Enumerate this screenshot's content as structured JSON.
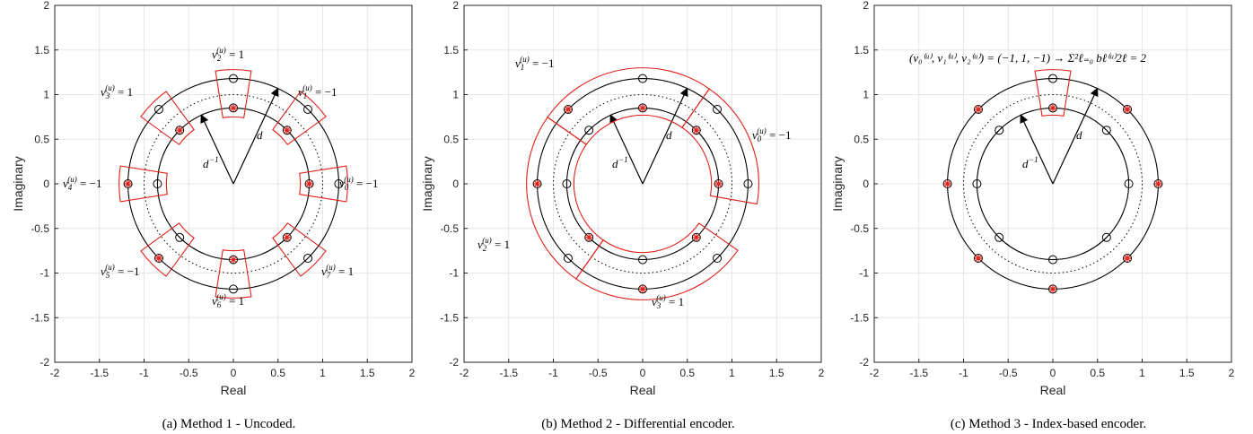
{
  "chart_data": [
    {
      "type": "scatter",
      "xlabel": "Real",
      "ylabel": "Imaginary",
      "xlim": [
        -2,
        2
      ],
      "ylim": [
        -2,
        2
      ],
      "xticks": [
        "-2",
        "-1.5",
        "-1",
        "-0.5",
        "0",
        "0.5",
        "1",
        "1.5",
        "2"
      ],
      "yticks": [
        "-2",
        "-1.5",
        "-1",
        "-0.5",
        "0",
        "0.5",
        "1",
        "1.5",
        "2"
      ],
      "grid": true,
      "caption": "(a) Method 1 - Uncoded.",
      "circles": {
        "outer_radius": 1.18,
        "inner_radius": 0.85,
        "dotted_radius": 1.0
      },
      "arrow_labels": {
        "outer": "d",
        "inner": "d^-1"
      },
      "outer_points_angles_deg": [
        0,
        45,
        90,
        135,
        180,
        225,
        270,
        315
      ],
      "inner_points_angles_deg": [
        0,
        45,
        90,
        135,
        180,
        225,
        270,
        315
      ],
      "selected": [
        {
          "ring": "inner",
          "angle": 0
        },
        {
          "ring": "inner",
          "angle": 45
        },
        {
          "ring": "inner",
          "angle": 90
        },
        {
          "ring": "inner",
          "angle": 135
        },
        {
          "ring": "outer",
          "angle": 180
        },
        {
          "ring": "outer",
          "angle": 225
        },
        {
          "ring": "inner",
          "angle": 270
        },
        {
          "ring": "inner",
          "angle": 315
        }
      ],
      "annotations": [
        {
          "text": "v_0^(u) = -1"
        },
        {
          "text": "v_1^(u) = -1"
        },
        {
          "text": "v_2^(u) = 1"
        },
        {
          "text": "v_3^(u) = 1"
        },
        {
          "text": "v_4^(u) = -1"
        },
        {
          "text": "v_5^(u) = -1"
        },
        {
          "text": "v_6^(u) = 1"
        },
        {
          "text": "v_7^(u) = 1"
        }
      ]
    },
    {
      "type": "scatter",
      "xlabel": "Real",
      "ylabel": "Imaginary",
      "xlim": [
        -2,
        2
      ],
      "ylim": [
        -2,
        2
      ],
      "xticks": [
        "-2",
        "-1.5",
        "-1",
        "-0.5",
        "0",
        "0.5",
        "1",
        "1.5",
        "2"
      ],
      "yticks": [
        "-2",
        "-1.5",
        "-1",
        "-0.5",
        "0",
        "0.5",
        "1",
        "1.5",
        "2"
      ],
      "grid": true,
      "caption": "(b) Method 2 - Differential encoder.",
      "circles": {
        "outer_radius": 1.18,
        "inner_radius": 0.85,
        "dotted_radius": 1.0
      },
      "arrow_labels": {
        "outer": "d",
        "inner": "d^-1"
      },
      "outer_points_angles_deg": [
        0,
        45,
        90,
        135,
        180,
        225,
        270,
        315
      ],
      "inner_points_angles_deg": [
        0,
        45,
        90,
        135,
        180,
        225,
        270,
        315
      ],
      "selected": [
        {
          "ring": "inner",
          "angle": 0
        },
        {
          "ring": "inner",
          "angle": 45
        },
        {
          "ring": "inner",
          "angle": 90
        },
        {
          "ring": "outer",
          "angle": 135
        },
        {
          "ring": "outer",
          "angle": 180
        },
        {
          "ring": "inner",
          "angle": 225
        },
        {
          "ring": "outer",
          "angle": 270
        },
        {
          "ring": "inner",
          "angle": 315
        }
      ],
      "annotations": [
        {
          "text": "v_0^(u) = -1"
        },
        {
          "text": "v_1^(u) = -1"
        },
        {
          "text": "v_2^(u) = 1"
        },
        {
          "text": "v_3^(u) = 1"
        }
      ]
    },
    {
      "type": "scatter",
      "xlabel": "Real",
      "ylabel": "Imaginary",
      "xlim": [
        -2,
        2
      ],
      "ylim": [
        -2,
        2
      ],
      "xticks": [
        "-2",
        "-1.5",
        "-1",
        "-0.5",
        "0",
        "0.5",
        "1",
        "1.5",
        "2"
      ],
      "yticks": [
        "-2",
        "-1.5",
        "-1",
        "-0.5",
        "0",
        "0.5",
        "1",
        "1.5",
        "2"
      ],
      "grid": true,
      "caption": "(c) Method 3 - Index-based encoder.",
      "circles": {
        "outer_radius": 1.18,
        "inner_radius": 0.85,
        "dotted_radius": 1.0
      },
      "arrow_labels": {
        "outer": "d",
        "inner": "d^-1"
      },
      "outer_points_angles_deg": [
        0,
        45,
        90,
        135,
        180,
        225,
        270,
        315
      ],
      "inner_points_angles_deg": [
        0,
        45,
        90,
        135,
        180,
        225,
        270,
        315
      ],
      "selected": [
        {
          "ring": "outer",
          "angle": 0
        },
        {
          "ring": "outer",
          "angle": 45
        },
        {
          "ring": "inner",
          "angle": 90
        },
        {
          "ring": "outer",
          "angle": 135
        },
        {
          "ring": "outer",
          "angle": 180
        },
        {
          "ring": "outer",
          "angle": 225
        },
        {
          "ring": "outer",
          "angle": 270
        },
        {
          "ring": "outer",
          "angle": 315
        }
      ],
      "annotations": [
        {
          "text": "(v_0^(u), v_1^(u), v_2^(u)) = (-1, 1, -1) → Σ_{ℓ=0}^2 b_ℓ^(u) 2^ℓ = 2"
        }
      ]
    }
  ],
  "colors": {
    "ring": "#000000",
    "selected": "#e0201a",
    "grid": "#e6e6e6",
    "axis": "#262626"
  }
}
